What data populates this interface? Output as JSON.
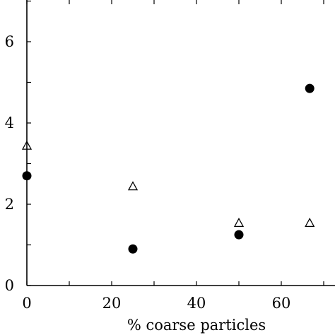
{
  "chart_data": {
    "type": "scatter",
    "xlabel": "% coarse particles",
    "ylabel": "",
    "xlim": [
      0,
      72
    ],
    "ylim": [
      0,
      7
    ],
    "x_ticks": [
      0,
      20,
      40,
      60
    ],
    "x_tick_labels": [
      "0",
      "20",
      "40",
      "60"
    ],
    "y_ticks": [
      0,
      2,
      4,
      6
    ],
    "y_tick_labels": [
      "0",
      "2",
      "4",
      "6"
    ],
    "grid": false,
    "series": [
      {
        "marker": "circle-filled",
        "color": "#000000",
        "points": [
          {
            "x": 0,
            "y": 2.7
          },
          {
            "x": 25,
            "y": 0.9
          },
          {
            "x": 50,
            "y": 1.25
          },
          {
            "x": 66.7,
            "y": 4.85
          }
        ]
      },
      {
        "marker": "triangle-open",
        "color": "#000000",
        "points": [
          {
            "x": 0,
            "y": 3.45
          },
          {
            "x": 25,
            "y": 2.45
          },
          {
            "x": 50,
            "y": 1.55
          },
          {
            "x": 66.7,
            "y": 1.55
          }
        ]
      }
    ]
  }
}
